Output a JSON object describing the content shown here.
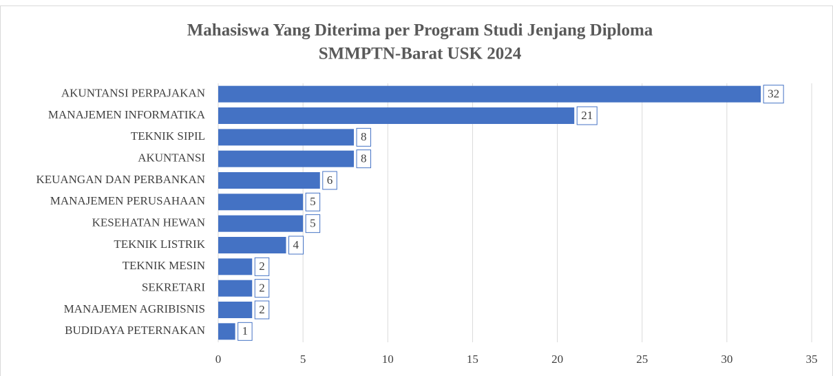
{
  "chart_data": {
    "type": "bar",
    "orientation": "horizontal",
    "title": [
      "Mahasiswa Yang Diterima per Program Studi Jenjang Diploma",
      "SMMPTN-Barat USK 2024"
    ],
    "categories": [
      "AKUNTANSI PERPAJAKAN",
      "MANAJEMEN INFORMATIKA",
      "TEKNIK SIPIL",
      "AKUNTANSI",
      "KEUANGAN DAN PERBANKAN",
      "MANAJEMEN PERUSAHAAN",
      "KESEHATAN HEWAN",
      "TEKNIK LISTRIK",
      "TEKNIK MESIN",
      "SEKRETARI",
      "MANAJEMEN AGRIBISNIS",
      "BUDIDAYA PETERNAKAN"
    ],
    "values": [
      32,
      21,
      8,
      8,
      6,
      5,
      5,
      4,
      2,
      2,
      2,
      1
    ],
    "color": "#4472c4",
    "xlim": [
      0,
      35
    ],
    "xticks": [
      0,
      5,
      10,
      15,
      20,
      25,
      30,
      35
    ],
    "grid": true
  }
}
